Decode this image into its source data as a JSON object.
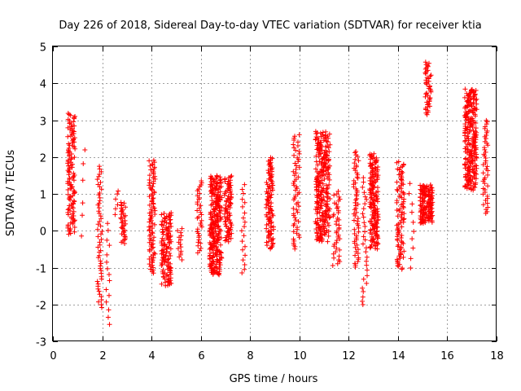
{
  "chart_data": {
    "type": "scatter",
    "title": "Day 226 of 2018, Sidereal Day-to-day VTEC variation (SDTVAR) for receiver ktia",
    "xlabel": "GPS time / hours",
    "ylabel": "SDTVAR / TECUs",
    "xlim": [
      0,
      18
    ],
    "ylim": [
      -3,
      5
    ],
    "xticks": [
      0,
      2,
      4,
      6,
      8,
      10,
      12,
      14,
      16,
      18
    ],
    "yticks": [
      -3,
      -2,
      -1,
      0,
      1,
      2,
      3,
      4,
      5
    ],
    "grid": true,
    "marker": "+",
    "color": "#ff0000",
    "series": [
      {
        "name": "SDTVAR",
        "clusters": [
          {
            "x": [
              0.6,
              0.9
            ],
            "y": [
              -0.1,
              3.2
            ],
            "n": 120
          },
          {
            "x": [
              1.15,
              1.3
            ],
            "y": [
              -0.2,
              2.6
            ],
            "n": 6
          },
          {
            "x": [
              1.8,
              2.0
            ],
            "y": [
              -2.1,
              1.8
            ],
            "n": 55
          },
          {
            "x": [
              2.15,
              2.3
            ],
            "y": [
              -2.6,
              0.3
            ],
            "n": 15
          },
          {
            "x": [
              2.5,
              2.65
            ],
            "y": [
              0.4,
              1.2
            ],
            "n": 6
          },
          {
            "x": [
              2.75,
              2.95
            ],
            "y": [
              -0.35,
              0.8
            ],
            "n": 35
          },
          {
            "x": [
              3.9,
              4.15
            ],
            "y": [
              -1.15,
              1.95
            ],
            "n": 90
          },
          {
            "x": [
              4.4,
              4.8
            ],
            "y": [
              -1.5,
              0.5
            ],
            "n": 120
          },
          {
            "x": [
              5.05,
              5.25
            ],
            "y": [
              -0.8,
              0.1
            ],
            "n": 15
          },
          {
            "x": [
              5.85,
              6.05
            ],
            "y": [
              -0.6,
              1.4
            ],
            "n": 35
          },
          {
            "x": [
              6.35,
              6.85
            ],
            "y": [
              -1.2,
              1.5
            ],
            "n": 250
          },
          {
            "x": [
              6.95,
              7.25
            ],
            "y": [
              -0.3,
              1.5
            ],
            "n": 80
          },
          {
            "x": [
              7.65,
              7.8
            ],
            "y": [
              -1.2,
              1.35
            ],
            "n": 20
          },
          {
            "x": [
              8.65,
              8.95
            ],
            "y": [
              -0.5,
              2.0
            ],
            "n": 100
          },
          {
            "x": [
              9.75,
              10.0
            ],
            "y": [
              -0.5,
              2.65
            ],
            "n": 60
          },
          {
            "x": [
              10.65,
              11.25
            ],
            "y": [
              -0.3,
              2.7
            ],
            "n": 260
          },
          {
            "x": [
              11.35,
              11.65
            ],
            "y": [
              -0.95,
              1.1
            ],
            "n": 40
          },
          {
            "x": [
              12.2,
              12.4
            ],
            "y": [
              -1.0,
              2.2
            ],
            "n": 60
          },
          {
            "x": [
              12.55,
              12.75
            ],
            "y": [
              -2.05,
              1.5
            ],
            "n": 30
          },
          {
            "x": [
              12.85,
              13.2
            ],
            "y": [
              -0.5,
              2.1
            ],
            "n": 160
          },
          {
            "x": [
              13.95,
              14.25
            ],
            "y": [
              -1.05,
              1.9
            ],
            "n": 90
          },
          {
            "x": [
              14.45,
              14.65
            ],
            "y": [
              -1.1,
              1.45
            ],
            "n": 10
          },
          {
            "x": [
              14.9,
              15.4
            ],
            "y": [
              0.2,
              1.25
            ],
            "n": 150
          },
          {
            "x": [
              15.1,
              15.35
            ],
            "y": [
              3.15,
              4.6
            ],
            "n": 45
          },
          {
            "x": [
              16.7,
              17.2
            ],
            "y": [
              1.1,
              3.85
            ],
            "n": 230
          },
          {
            "x": [
              17.45,
              17.65
            ],
            "y": [
              0.45,
              3.05
            ],
            "n": 45
          }
        ]
      }
    ]
  }
}
